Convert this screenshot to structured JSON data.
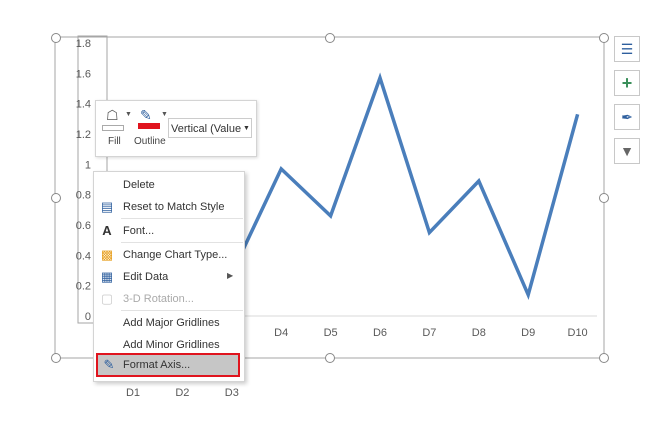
{
  "chart_data": {
    "type": "line",
    "categories": [
      "D1",
      "D2",
      "D3",
      "D4",
      "D5",
      "D6",
      "D7",
      "D8",
      "D9",
      "D10"
    ],
    "values": [
      null,
      null,
      0.28,
      0.97,
      0.66,
      1.57,
      0.55,
      0.89,
      0.14,
      1.33
    ],
    "ylim": [
      0,
      1.8
    ],
    "yticks": [
      "0",
      "0.2",
      "0.4",
      "0.6",
      "0.8",
      "1",
      "1.2",
      "1.4",
      "1.6",
      "1.8"
    ],
    "grid": false,
    "line_color": "#4a7ebb"
  },
  "side_buttons": [
    "chart-layout-icon",
    "chart-elements-plus-icon",
    "chart-styles-brush-icon",
    "chart-filter-icon"
  ],
  "mini_toolbar": {
    "fill_label": "Fill",
    "outline_label": "Outline",
    "element_select": "Vertical (Value)",
    "outline_color": "#e0141e"
  },
  "context_menu": {
    "items": [
      {
        "label": "Delete",
        "icon": ""
      },
      {
        "label": "Reset to Match Style",
        "icon": "reset-style-icon"
      },
      {
        "label": "Font...",
        "icon": "font-icon"
      },
      {
        "label": "Change Chart Type...",
        "icon": "chart-type-icon"
      },
      {
        "label": "Edit Data",
        "icon": "edit-data-icon",
        "submenu": true
      },
      {
        "label": "3-D Rotation...",
        "icon": "3d-rotation-icon",
        "disabled": true
      },
      {
        "label": "Add Major Gridlines",
        "icon": ""
      },
      {
        "label": "Add Minor Gridlines",
        "icon": ""
      },
      {
        "label": "Format Axis...",
        "icon": "format-axis-icon",
        "highlighted": true
      }
    ],
    "highlight_color": "#e0141e"
  }
}
